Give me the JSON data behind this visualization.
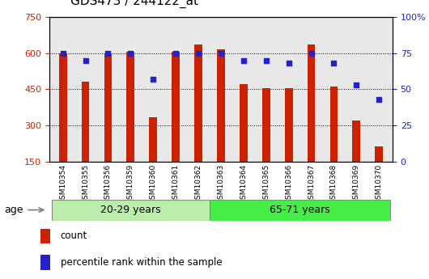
{
  "title": "GDS473 / 244122_at",
  "categories": [
    "GSM10354",
    "GSM10355",
    "GSM10356",
    "GSM10359",
    "GSM10360",
    "GSM10361",
    "GSM10362",
    "GSM10363",
    "GSM10364",
    "GSM10365",
    "GSM10366",
    "GSM10367",
    "GSM10368",
    "GSM10369",
    "GSM10370"
  ],
  "bar_values": [
    600,
    480,
    600,
    605,
    335,
    605,
    635,
    615,
    470,
    455,
    455,
    635,
    460,
    320,
    215
  ],
  "dot_values": [
    75,
    70,
    75,
    75,
    57,
    75,
    75,
    75,
    70,
    70,
    68,
    75,
    68,
    53,
    43
  ],
  "group1_label": "20-29 years",
  "group2_label": "65-71 years",
  "group1_count": 7,
  "group2_count": 8,
  "bar_color": "#CC2200",
  "dot_color": "#2222CC",
  "group1_color": "#BBEEAA",
  "group2_color": "#44EE44",
  "ylim_left": [
    150,
    750
  ],
  "ylim_right": [
    0,
    100
  ],
  "yticks_left": [
    150,
    300,
    450,
    600,
    750
  ],
  "yticks_right": [
    0,
    25,
    50,
    75,
    100
  ],
  "legend_count_label": "count",
  "legend_pct_label": "percentile rank within the sample",
  "age_label": "age",
  "bar_bottom": 150,
  "plot_bg": "#E8E8E8",
  "title_fontsize": 11,
  "tick_fontsize": 8,
  "label_fontsize": 8
}
